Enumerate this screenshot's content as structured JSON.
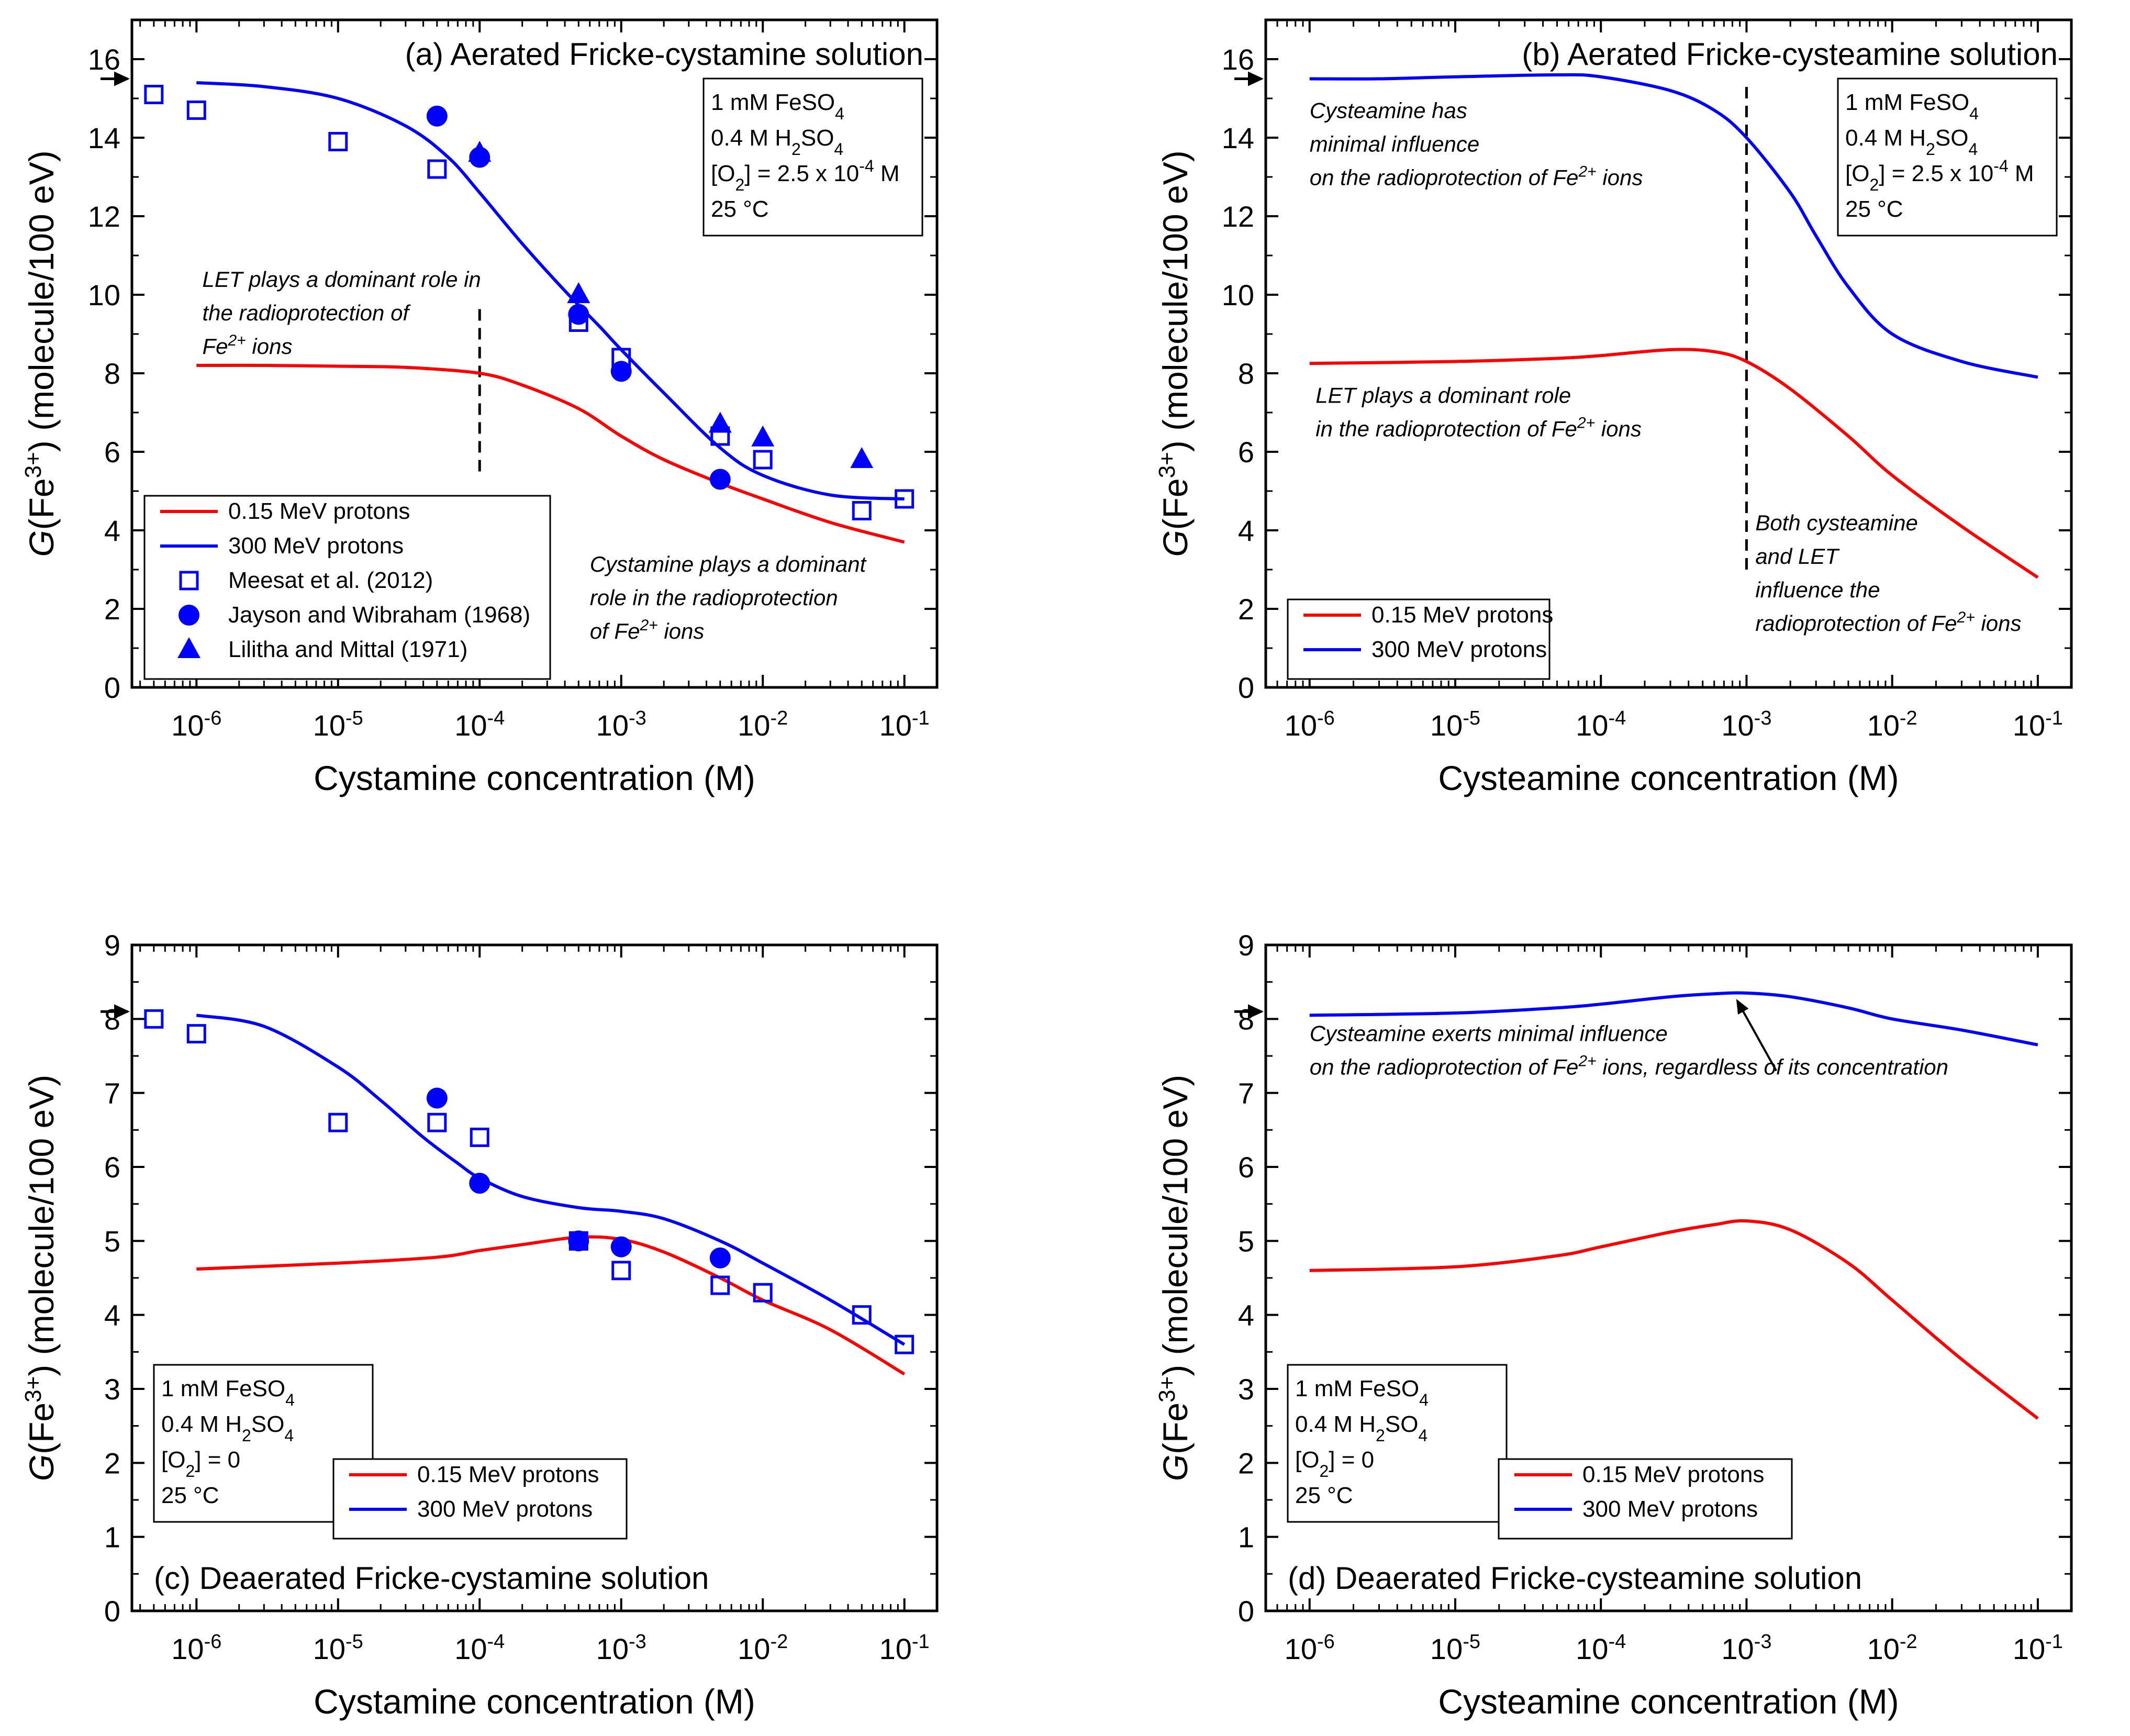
{
  "chart_data": [
    {
      "id": "a",
      "type": "line",
      "title": "(a) Aerated Fricke-cystamine solution",
      "xlabel": "Cystamine concentration (M)",
      "ylabel_main": "(Fe",
      "ylabel_sup": "3+",
      "ylabel_tail": ") (molecule/100 eV)",
      "ylabel_italic": "G",
      "x_scale": "log",
      "xlim": [
        3.5e-07,
        0.17
      ],
      "ylim": [
        0,
        17
      ],
      "y_ticks": [
        0,
        2,
        4,
        6,
        8,
        10,
        12,
        14,
        16
      ],
      "x_ticks": [
        1e-06,
        1e-05,
        0.0001,
        0.001,
        0.01,
        0.1
      ],
      "x_tick_labels": [
        "10",
        "10",
        "10",
        "10",
        "10",
        "10"
      ],
      "x_tick_exps": [
        "-6",
        "-5",
        "-4",
        "-3",
        "-2",
        "-1"
      ],
      "arrow_y": 15.5,
      "conditions": {
        "position": "top-right",
        "lines": [
          {
            "main": "1 mM FeSO",
            "sub": "4",
            "rest": "",
            "sup": "",
            "tail": ""
          },
          {
            "main": "0.4 M H",
            "sub": "2",
            "rest": "SO",
            "sub2": "4",
            "sup": "",
            "tail": ""
          },
          {
            "main": "[O",
            "sub": "2",
            "rest": "] = 2.5 x 10",
            "sup": "-4",
            "tail": " M"
          },
          {
            "main": "25 °C",
            "sub": "",
            "rest": "",
            "sup": "",
            "tail": ""
          }
        ]
      },
      "series": [
        {
          "name": "0.15 MeV protons",
          "kind": "line",
          "color": "#ff0000",
          "x": [
            1e-06,
            3e-06,
            1e-05,
            3e-05,
            0.0001,
            0.0002,
            0.0005,
            0.001,
            0.002,
            0.005,
            0.01,
            0.03,
            0.1
          ],
          "y": [
            8.2,
            8.2,
            8.18,
            8.15,
            8.0,
            7.7,
            7.1,
            6.4,
            5.8,
            5.2,
            4.8,
            4.2,
            3.7
          ]
        },
        {
          "name": "300 MeV protons",
          "kind": "line",
          "color": "#0000ff",
          "x": [
            1e-06,
            3e-06,
            1e-05,
            3e-05,
            6e-05,
            0.0001,
            0.0002,
            0.0004,
            0.0007,
            0.001,
            0.002,
            0.005,
            0.01,
            0.03,
            0.1
          ],
          "y": [
            15.4,
            15.3,
            15.0,
            14.3,
            13.5,
            12.6,
            11.3,
            10.1,
            9.2,
            8.6,
            7.5,
            6.1,
            5.4,
            4.9,
            4.8
          ]
        },
        {
          "name": "Meesat et al. (2012)",
          "kind": "scatter",
          "marker": "square-open",
          "color": "#0000ff",
          "x": [
            5e-07,
            1e-06,
            1e-05,
            5e-05,
            0.0005,
            0.001,
            0.005,
            0.01,
            0.05,
            0.1
          ],
          "y": [
            15.1,
            14.7,
            13.9,
            13.2,
            9.3,
            8.4,
            6.4,
            5.8,
            4.5,
            4.8
          ]
        },
        {
          "name": "Jayson and Wibraham (1968)",
          "kind": "scatter",
          "marker": "circle-filled",
          "color": "#0000ff",
          "x": [
            5e-05,
            0.0001,
            0.0005,
            0.001,
            0.005
          ],
          "y": [
            14.55,
            13.5,
            9.5,
            8.05,
            5.3
          ]
        },
        {
          "name": "Lilitha and Mittal (1971)",
          "kind": "scatter",
          "marker": "triangle-filled",
          "color": "#0000ff",
          "x": [
            0.0001,
            0.0005,
            0.005,
            0.01,
            0.05
          ],
          "y": [
            13.6,
            10.0,
            6.7,
            6.35,
            5.8
          ]
        }
      ],
      "legend": {
        "position": "bottom-left"
      },
      "vline": {
        "x": 0.0001,
        "y": [
          5.5,
          9.8
        ]
      },
      "annotations": [
        {
          "lines": [
            "LET plays a dominant role in",
            "the radioprotection of",
            "Fe|2+| ions"
          ],
          "anchor_x": 1.1e-06,
          "anchor_y": 10.2
        },
        {
          "lines": [
            "Cystamine plays a dominant",
            "role in the radioprotection",
            "of Fe|2+| ions"
          ],
          "anchor_x": 0.0006,
          "anchor_y": 2.95
        }
      ]
    },
    {
      "id": "b",
      "type": "line",
      "title": "(b) Aerated Fricke-cysteamine solution",
      "xlabel": "Cysteamine concentration (M)",
      "ylabel_main": "(Fe",
      "ylabel_sup": "3+",
      "ylabel_tail": ") (molecule/100 eV)",
      "ylabel_italic": "G",
      "x_scale": "log",
      "xlim": [
        5e-07,
        0.17
      ],
      "ylim": [
        0,
        17
      ],
      "y_ticks": [
        0,
        2,
        4,
        6,
        8,
        10,
        12,
        14,
        16
      ],
      "x_ticks": [
        1e-06,
        1e-05,
        0.0001,
        0.001,
        0.01,
        0.1
      ],
      "x_tick_labels": [
        "10",
        "10",
        "10",
        "10",
        "10",
        "10"
      ],
      "x_tick_exps": [
        "-6",
        "-5",
        "-4",
        "-3",
        "-2",
        "-1"
      ],
      "arrow_y": 15.5,
      "conditions": {
        "position": "top-right",
        "lines": [
          {
            "main": "1 mM FeSO",
            "sub": "4",
            "rest": "",
            "sup": "",
            "tail": ""
          },
          {
            "main": "0.4 M H",
            "sub": "2",
            "rest": "SO",
            "sub2": "4",
            "sup": "",
            "tail": ""
          },
          {
            "main": "[O",
            "sub": "2",
            "rest": "] = 2.5 x 10",
            "sup": "-4",
            "tail": " M"
          },
          {
            "main": "25 °C",
            "sub": "",
            "rest": "",
            "sup": "",
            "tail": ""
          }
        ]
      },
      "series": [
        {
          "name": "0.15 MeV protons",
          "kind": "line",
          "color": "#ff0000",
          "x": [
            1e-06,
            1e-05,
            5e-05,
            0.0001,
            0.0003,
            0.0006,
            0.001,
            0.002,
            0.005,
            0.01,
            0.03,
            0.1
          ],
          "y": [
            8.25,
            8.3,
            8.38,
            8.45,
            8.6,
            8.55,
            8.3,
            7.6,
            6.4,
            5.4,
            4.1,
            2.8
          ]
        },
        {
          "name": "300 MeV protons",
          "kind": "line",
          "color": "#0000ff",
          "x": [
            1e-06,
            3e-06,
            1e-05,
            5e-05,
            0.0001,
            0.0003,
            0.0006,
            0.001,
            0.002,
            0.003,
            0.005,
            0.01,
            0.03,
            0.1
          ],
          "y": [
            15.5,
            15.5,
            15.55,
            15.6,
            15.55,
            15.2,
            14.7,
            14.0,
            12.6,
            11.5,
            10.2,
            9.0,
            8.3,
            7.9
          ]
        }
      ],
      "legend": {
        "position": "bottom-left"
      },
      "vline": {
        "x": 0.001,
        "y": [
          3.0,
          15.3
        ]
      },
      "annotations": [
        {
          "lines": [
            "Cysteamine has",
            "minimal influence",
            "on the radioprotection of Fe|2+| ions"
          ],
          "anchor_x": 1e-06,
          "anchor_y": 14.5
        },
        {
          "lines": [
            "LET plays a dominant role",
            "in the radioprotection of Fe|2+| ions"
          ],
          "anchor_x": 1.1e-06,
          "anchor_y": 7.25
        },
        {
          "lines": [
            "Both cysteamine",
            "and LET",
            "influence the",
            "radioprotection of Fe|2+| ions"
          ],
          "anchor_x": 0.00115,
          "anchor_y": 4.0
        }
      ]
    },
    {
      "id": "c",
      "type": "line",
      "title": "(c) Deaerated Fricke-cystamine solution",
      "xlabel": "Cystamine concentration (M)",
      "ylabel_main": "(Fe",
      "ylabel_sup": "3+",
      "ylabel_tail": ") (molecule/100 eV)",
      "ylabel_italic": "G",
      "x_scale": "log",
      "xlim": [
        3.5e-07,
        0.17
      ],
      "ylim": [
        0,
        9
      ],
      "y_ticks": [
        0,
        1,
        2,
        3,
        4,
        5,
        6,
        7,
        8,
        9
      ],
      "x_ticks": [
        1e-06,
        1e-05,
        0.0001,
        0.001,
        0.01,
        0.1
      ],
      "x_tick_labels": [
        "10",
        "10",
        "10",
        "10",
        "10",
        "10"
      ],
      "x_tick_exps": [
        "-6",
        "-5",
        "-4",
        "-3",
        "-2",
        "-1"
      ],
      "arrow_y": 8.1,
      "conditions": {
        "position": "bottom-left",
        "lines": [
          {
            "main": "1 mM FeSO",
            "sub": "4",
            "rest": "",
            "sup": "",
            "tail": ""
          },
          {
            "main": "0.4 M H",
            "sub": "2",
            "rest": "SO",
            "sub2": "4",
            "sup": "",
            "tail": ""
          },
          {
            "main": "[O",
            "sub": "2",
            "rest": "] = 0",
            "sup": "",
            "tail": ""
          },
          {
            "main": "25 °C",
            "sub": "",
            "rest": "",
            "sup": "",
            "tail": ""
          }
        ]
      },
      "series": [
        {
          "name": "0.15 MeV protons",
          "kind": "line",
          "color": "#ff0000",
          "x": [
            1e-06,
            1e-05,
            5e-05,
            0.0001,
            0.0002,
            0.0005,
            0.001,
            0.002,
            0.005,
            0.01,
            0.03,
            0.1
          ],
          "y": [
            4.62,
            4.7,
            4.78,
            4.87,
            4.95,
            5.05,
            5.02,
            4.85,
            4.5,
            4.2,
            3.8,
            3.2
          ]
        },
        {
          "name": "300 MeV protons",
          "kind": "line",
          "color": "#0000ff",
          "x": [
            1e-06,
            3e-06,
            1e-05,
            2e-05,
            4e-05,
            7e-05,
            0.0001,
            0.0002,
            0.0005,
            0.001,
            0.002,
            0.005,
            0.01,
            0.03,
            0.1
          ],
          "y": [
            8.05,
            7.9,
            7.35,
            6.9,
            6.4,
            6.05,
            5.85,
            5.6,
            5.45,
            5.4,
            5.3,
            5.0,
            4.7,
            4.2,
            3.6
          ]
        },
        {
          "name": "Meesat et al. (2012)",
          "kind": "scatter",
          "marker": "square-open",
          "color": "#0000ff",
          "x": [
            5e-07,
            1e-06,
            1e-05,
            5e-05,
            0.0001,
            0.0005,
            0.001,
            0.005,
            0.01,
            0.05,
            0.1
          ],
          "y": [
            8.0,
            7.8,
            6.6,
            6.6,
            6.4,
            5.0,
            4.6,
            4.4,
            4.3,
            4.0,
            3.6
          ]
        },
        {
          "name": "Jayson and Wibraham (1968)",
          "kind": "scatter",
          "marker": "circle-filled",
          "color": "#0000ff",
          "x": [
            5e-05,
            0.0001,
            0.0005,
            0.001,
            0.005
          ],
          "y": [
            6.93,
            5.78,
            5.0,
            4.92,
            4.77
          ]
        }
      ],
      "legend": {
        "position": "bottom-center"
      },
      "vline": null,
      "annotations": []
    },
    {
      "id": "d",
      "type": "line",
      "title": "(d) Deaerated Fricke-cysteamine solution",
      "xlabel": "Cysteamine concentration (M)",
      "ylabel_main": "(Fe",
      "ylabel_sup": "3+",
      "ylabel_tail": ") (molecule/100 eV)",
      "ylabel_italic": "G",
      "x_scale": "log",
      "xlim": [
        5e-07,
        0.17
      ],
      "ylim": [
        0,
        9
      ],
      "y_ticks": [
        0,
        1,
        2,
        3,
        4,
        5,
        6,
        7,
        8,
        9
      ],
      "x_ticks": [
        1e-06,
        1e-05,
        0.0001,
        0.001,
        0.01,
        0.1
      ],
      "x_tick_labels": [
        "10",
        "10",
        "10",
        "10",
        "10",
        "10"
      ],
      "x_tick_exps": [
        "-6",
        "-5",
        "-4",
        "-3",
        "-2",
        "-1"
      ],
      "arrow_y": 8.1,
      "conditions": {
        "position": "bottom-left",
        "lines": [
          {
            "main": "1 mM FeSO",
            "sub": "4",
            "rest": "",
            "sup": "",
            "tail": ""
          },
          {
            "main": "0.4 M H",
            "sub": "2",
            "rest": "SO",
            "sub2": "4",
            "sup": "",
            "tail": ""
          },
          {
            "main": "[O",
            "sub": "2",
            "rest": "] = 0",
            "sup": "",
            "tail": ""
          },
          {
            "main": "25 °C",
            "sub": "",
            "rest": "",
            "sup": "",
            "tail": ""
          }
        ]
      },
      "series": [
        {
          "name": "0.15 MeV protons",
          "kind": "line",
          "color": "#ff0000",
          "x": [
            1e-06,
            1e-05,
            5e-05,
            0.0001,
            0.0003,
            0.0006,
            0.001,
            0.002,
            0.005,
            0.01,
            0.03,
            0.1
          ],
          "y": [
            4.6,
            4.65,
            4.8,
            4.92,
            5.12,
            5.22,
            5.27,
            5.15,
            4.7,
            4.2,
            3.4,
            2.6
          ]
        },
        {
          "name": "300 MeV protons",
          "kind": "line",
          "color": "#0000ff",
          "x": [
            1e-06,
            1e-05,
            5e-05,
            0.0001,
            0.0003,
            0.0006,
            0.001,
            0.002,
            0.005,
            0.01,
            0.03,
            0.1
          ],
          "y": [
            8.05,
            8.08,
            8.15,
            8.2,
            8.3,
            8.34,
            8.35,
            8.3,
            8.15,
            8.0,
            7.85,
            7.65
          ]
        }
      ],
      "legend": {
        "position": "bottom-center"
      },
      "vline": null,
      "annotations": [
        {
          "lines": [
            "Cysteamine exerts minimal influence",
            "on the radioprotection of Fe|2+| ions, regardless of its concentration"
          ],
          "anchor_x": 1e-06,
          "anchor_y": 7.7
        }
      ],
      "arrow_annotation": {
        "from": [
          0.0016,
          7.3
        ],
        "to": [
          0.00085,
          8.27
        ]
      }
    }
  ]
}
